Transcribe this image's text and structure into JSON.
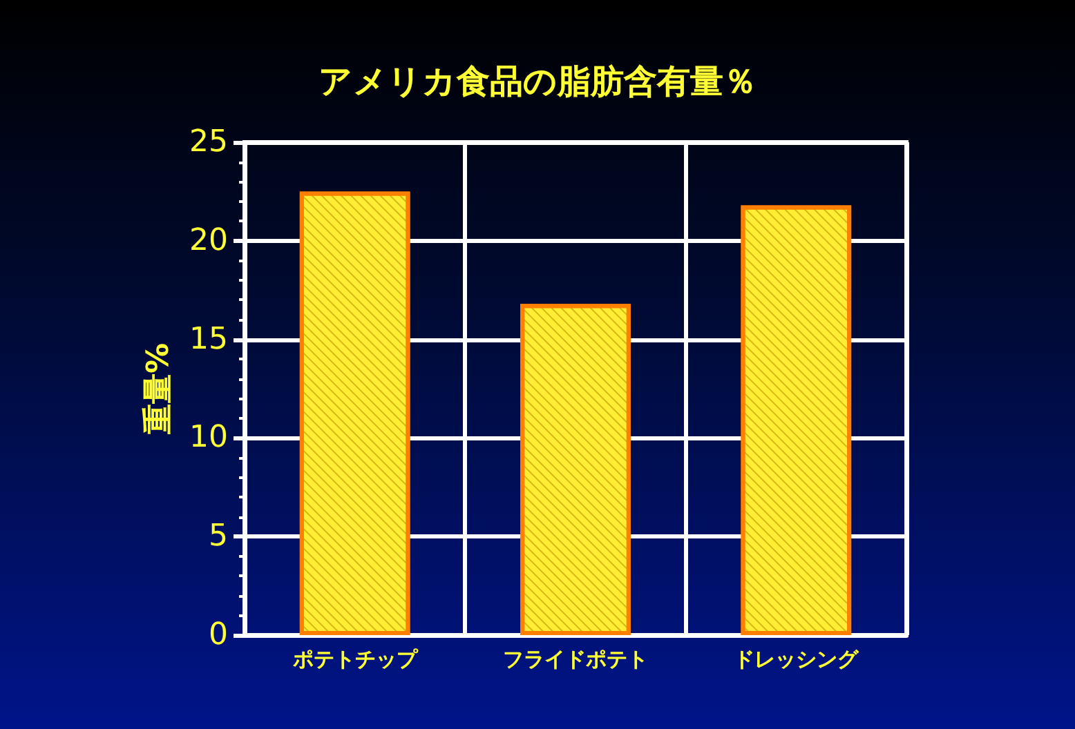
{
  "chart_data": {
    "type": "bar",
    "title": "アメリカ食品の脂肪含有量％",
    "ylabel": "重量%",
    "categories": [
      "ポテトチップ",
      "フライドポテト",
      "ドレッシング"
    ],
    "values": [
      22.5,
      16.8,
      21.8
    ],
    "color": "#ffee33",
    "ylim": [
      0,
      25
    ],
    "yticks": [
      0,
      5,
      10,
      15,
      20,
      25
    ],
    "grid": true
  }
}
